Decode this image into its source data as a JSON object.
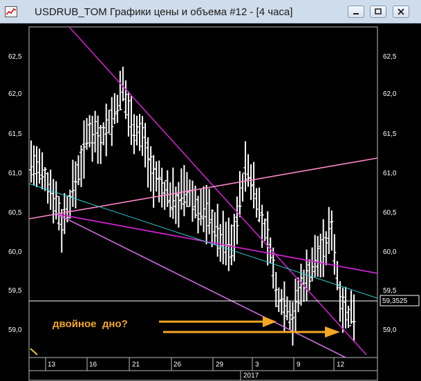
{
  "window": {
    "title": "USDRUB_TOM Графики цены и объема #12 - [4 часа]",
    "minimize_icon": "minimize-icon",
    "restore_icon": "restore-icon",
    "close_icon": "close-icon"
  },
  "chart_data": {
    "type": "bar",
    "y_ticks": [
      "62,5",
      "62,0",
      "61,5",
      "61,0",
      "60,5",
      "60,0",
      "59,5",
      "59,0"
    ],
    "x_ticks": [
      "13",
      "16",
      "21",
      "26",
      "29",
      "3",
      "9",
      "12"
    ],
    "year_label": "2017",
    "last_price": "59,3525",
    "annotation": "двойное  дно?",
    "ylim": [
      58.8,
      63.0
    ],
    "colors": {
      "bars": "#ffffff",
      "trend_magenta": "#cc22cc",
      "trend_pink": "#ff88cc",
      "trend_light_violet": "#d070e0",
      "trend_cyan": "#33cccc",
      "arrows": "#f5a623",
      "price_line": "#ffffff"
    }
  }
}
